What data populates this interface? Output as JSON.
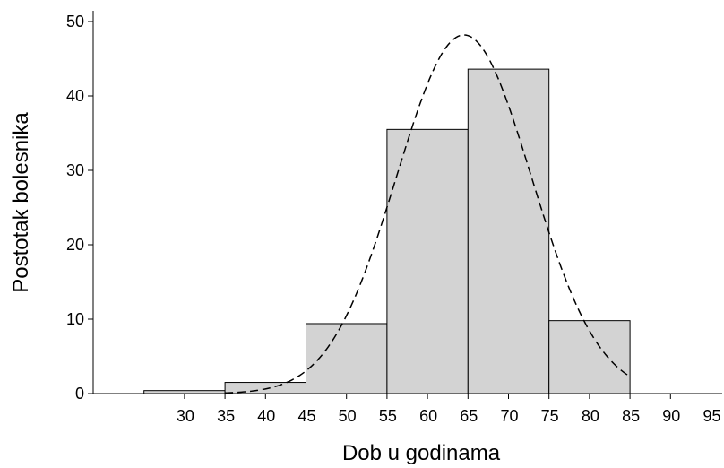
{
  "chart_data": {
    "type": "bar",
    "xlabel": "Dob u godinama",
    "ylabel": "Postotak bolesnika",
    "xlim": [
      20,
      97
    ],
    "ylim": [
      0,
      50
    ],
    "x_ticks": [
      30,
      35,
      40,
      45,
      50,
      55,
      60,
      65,
      70,
      75,
      80,
      85,
      90,
      95
    ],
    "y_ticks": [
      0,
      10,
      20,
      30,
      40,
      50
    ],
    "bins": [
      {
        "from": 25,
        "to": 35,
        "value": 0.4
      },
      {
        "from": 35,
        "to": 45,
        "value": 1.5
      },
      {
        "from": 45,
        "to": 55,
        "value": 9.4
      },
      {
        "from": 55,
        "to": 65,
        "value": 35.5
      },
      {
        "from": 65,
        "to": 75,
        "value": 43.6
      },
      {
        "from": 75,
        "to": 85,
        "value": 9.8
      }
    ],
    "fitted_curve": {
      "style": "dashed",
      "type": "normal",
      "mean": 64.5,
      "sd": 8.3,
      "peak": 48.2,
      "x_range": [
        35,
        85
      ]
    },
    "grid": false,
    "legend": "none"
  }
}
